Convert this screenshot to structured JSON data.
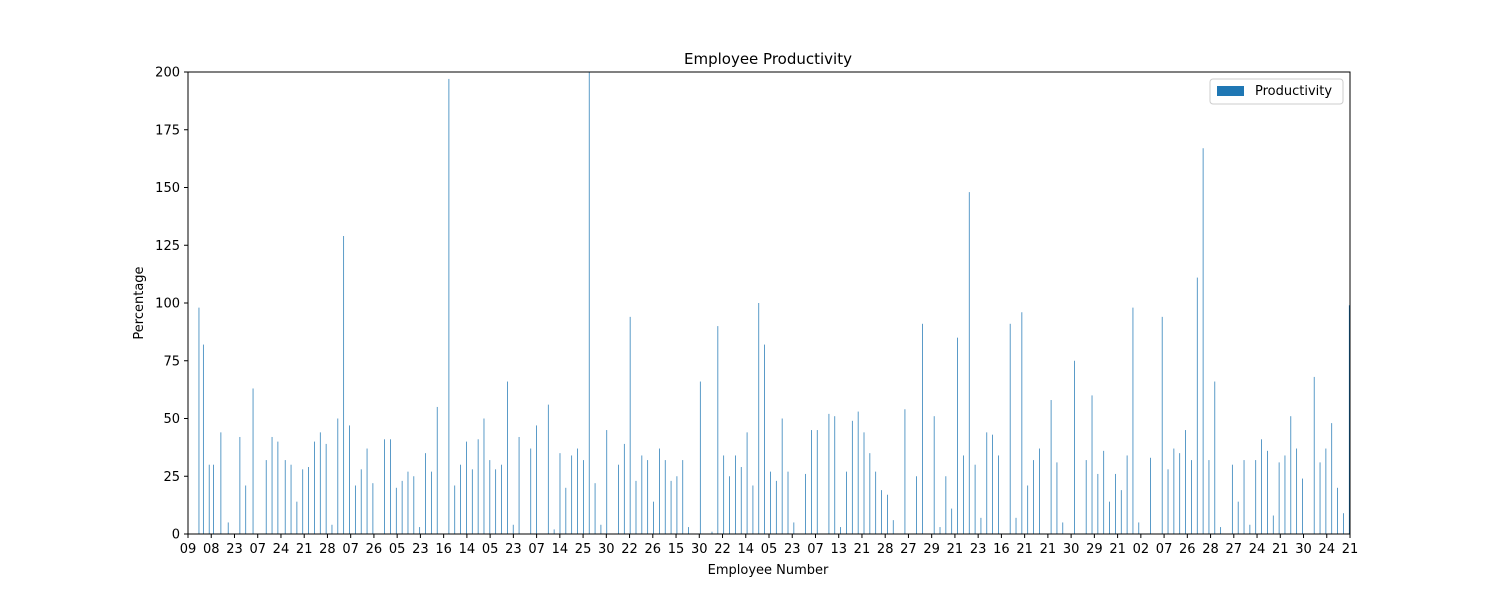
{
  "chart_data": {
    "type": "bar",
    "title": "Employee Productivity",
    "xlabel": "Employee Number",
    "ylabel": "Percentage",
    "ylim": [
      0,
      200
    ],
    "yticks": [
      0,
      25,
      50,
      75,
      100,
      125,
      150,
      175,
      200
    ],
    "xticklabels": [
      "09",
      "08",
      "23",
      "07",
      "24",
      "21",
      "28",
      "07",
      "26",
      "05",
      "23",
      "16",
      "14",
      "05",
      "23",
      "07",
      "14",
      "25",
      "30",
      "22",
      "26",
      "15",
      "30",
      "22",
      "14",
      "05",
      "23",
      "07",
      "13",
      "21",
      "28",
      "27",
      "29",
      "21",
      "23",
      "16",
      "21",
      "21",
      "30",
      "29",
      "21",
      "02",
      "07",
      "26",
      "28",
      "27",
      "24",
      "21",
      "30",
      "24",
      "21"
    ],
    "legend": {
      "position": "upper right",
      "entries": [
        "Productivity"
      ]
    },
    "grid": false,
    "colors": {
      "bar": "#1f77b4"
    },
    "series": [
      {
        "name": "Productivity",
        "values": [
          0,
          0,
          0,
          0,
          0,
          0,
          0,
          98,
          0,
          0,
          82,
          0,
          0,
          0,
          30,
          0,
          0,
          30,
          0,
          0,
          0,
          0,
          44,
          0,
          0,
          0,
          0,
          5,
          0,
          0,
          0,
          0,
          0,
          0,
          0,
          42,
          0,
          0,
          0,
          21,
          0,
          0,
          0,
          0,
          63,
          0,
          0,
          0,
          0,
          0,
          0,
          0,
          0,
          32,
          0,
          0,
          0,
          42,
          0,
          0,
          0,
          40,
          0,
          0,
          0,
          0,
          32,
          0,
          0,
          0,
          30,
          0,
          0,
          0,
          14,
          0,
          0,
          0,
          28,
          0,
          0,
          0,
          29,
          0,
          0,
          0,
          40,
          0,
          0,
          0,
          44,
          0,
          0,
          0,
          39,
          0,
          0,
          0,
          4,
          0,
          0,
          0,
          50,
          0,
          0,
          0,
          129,
          0,
          0,
          0,
          47,
          0,
          0,
          0,
          21,
          0,
          0,
          0,
          28,
          0,
          0,
          0,
          37,
          0,
          0,
          0,
          22,
          0,
          0,
          0,
          0,
          0,
          0,
          0,
          41,
          0,
          0,
          0,
          41,
          0,
          0,
          0,
          20,
          0,
          0,
          0,
          23,
          0,
          0,
          0,
          27,
          0,
          0,
          0,
          25,
          0,
          0,
          0,
          3,
          0,
          0,
          0,
          35,
          0,
          0,
          0,
          27,
          0,
          0,
          0,
          55,
          0,
          0,
          0,
          0,
          0,
          0,
          0,
          197,
          0,
          0,
          0,
          21,
          0,
          0,
          0,
          30,
          0,
          0,
          0,
          40,
          0,
          0,
          0,
          28,
          0,
          0,
          0,
          41,
          0,
          0,
          0,
          50,
          0,
          0,
          0,
          32,
          0,
          0,
          0,
          28,
          0,
          0,
          0,
          30,
          0,
          0,
          0,
          66,
          0,
          0,
          0,
          4,
          0,
          0,
          0,
          42,
          0,
          0,
          0,
          0,
          0,
          0,
          0,
          37,
          0,
          0,
          0,
          47,
          0,
          0,
          0,
          0,
          0,
          0,
          0,
          56,
          0,
          0,
          0,
          2,
          0,
          0,
          0,
          35,
          0,
          0,
          0,
          20,
          0,
          0,
          0,
          34,
          0,
          0,
          0,
          37,
          0,
          0,
          0,
          32,
          0,
          0,
          0,
          200,
          0,
          0,
          0,
          22,
          0,
          0,
          0,
          4,
          0,
          0,
          0,
          45,
          0,
          0,
          0,
          0,
          0,
          0,
          0,
          30,
          0,
          0,
          0,
          39,
          0,
          0,
          0,
          94,
          0,
          0,
          0,
          23,
          0,
          0,
          0,
          34,
          0,
          0,
          0,
          32,
          0,
          0,
          0,
          14,
          0,
          0,
          0,
          37,
          0,
          0,
          0,
          32,
          0,
          0,
          0,
          23,
          0,
          0,
          0,
          25,
          0,
          0,
          0,
          32,
          0,
          0,
          0,
          3,
          0,
          0,
          0,
          0,
          0,
          0,
          0,
          66,
          0,
          0,
          0,
          0,
          0,
          0,
          0,
          1,
          0,
          0,
          0,
          90,
          0,
          0,
          0,
          34,
          0,
          0,
          0,
          25,
          0,
          0,
          0,
          34,
          0,
          0,
          0,
          29,
          0,
          0,
          0,
          44,
          0,
          0,
          0,
          21,
          0,
          0,
          0,
          100,
          0,
          0,
          0,
          82,
          0,
          0,
          0,
          27,
          0,
          0,
          0,
          23,
          0,
          0,
          0,
          50,
          0,
          0,
          0,
          27,
          0,
          0,
          0,
          5,
          0,
          0,
          0,
          0,
          0,
          0,
          0,
          26,
          0,
          0,
          0,
          45,
          0,
          0,
          0,
          45,
          0,
          0,
          0,
          0,
          0,
          0,
          0,
          52,
          0,
          0,
          0,
          51,
          0,
          0,
          0,
          3,
          0,
          0,
          0,
          27,
          0,
          0,
          0,
          49,
          0,
          0,
          0,
          53,
          0,
          0,
          0,
          44,
          0,
          0,
          0,
          35,
          0,
          0,
          0,
          27,
          0,
          0,
          0,
          19,
          0,
          0,
          0,
          17,
          0,
          0,
          0,
          6,
          0,
          0,
          0,
          0,
          0,
          0,
          0,
          54,
          0,
          0,
          0,
          0,
          0,
          0,
          0,
          25,
          0,
          0,
          0,
          91,
          0,
          0,
          0,
          0,
          0,
          0,
          0,
          51,
          0,
          0,
          0,
          3,
          0,
          0,
          0,
          25,
          0,
          0,
          0,
          11,
          0,
          0,
          0,
          85,
          0,
          0,
          0,
          34,
          0,
          0,
          0,
          148,
          0,
          0,
          0,
          30,
          0,
          0,
          0,
          7,
          0,
          0,
          0,
          44,
          0,
          0,
          0,
          43,
          0,
          0,
          0,
          34,
          0,
          0,
          0,
          0,
          0,
          0,
          0,
          91,
          0,
          0,
          0,
          7,
          0,
          0,
          0,
          96,
          0,
          0,
          0,
          21,
          0,
          0,
          0,
          32,
          0,
          0,
          0,
          37,
          0,
          0,
          0,
          0,
          0,
          0,
          0,
          58,
          0,
          0,
          0,
          31,
          0,
          0,
          0,
          5,
          0,
          0,
          0,
          0,
          0,
          0,
          0,
          75,
          0,
          0,
          0,
          0,
          0,
          0,
          0,
          32,
          0,
          0,
          0,
          60,
          0,
          0,
          0,
          26,
          0,
          0,
          0,
          36,
          0,
          0,
          0,
          14,
          0,
          0,
          0,
          26,
          0,
          0,
          0,
          19,
          0,
          0,
          0,
          34,
          0,
          0,
          0,
          98,
          0,
          0,
          0,
          5,
          0,
          0,
          0,
          0,
          0,
          0,
          0,
          33,
          0,
          0,
          0,
          0,
          0,
          0,
          0,
          94,
          0,
          0,
          0,
          28,
          0,
          0,
          0,
          37,
          0,
          0,
          0,
          35,
          0,
          0,
          0,
          45,
          0,
          0,
          0,
          32,
          0,
          0,
          0,
          111,
          0,
          0,
          0,
          167,
          0,
          0,
          0,
          32,
          0,
          0,
          0,
          66,
          0,
          0,
          0,
          3,
          0,
          0,
          0,
          0,
          0,
          0,
          0,
          30,
          0,
          0,
          0,
          14,
          0,
          0,
          0,
          32,
          0,
          0,
          0,
          4,
          0,
          0,
          0,
          32,
          0,
          0,
          0,
          41,
          0,
          0,
          0,
          36,
          0,
          0,
          0,
          8,
          0,
          0,
          0,
          31,
          0,
          0,
          0,
          34,
          0,
          0,
          0,
          51,
          0,
          0,
          0,
          37,
          0,
          0,
          0,
          24,
          0,
          0,
          0,
          0,
          0,
          0,
          0,
          68,
          0,
          0,
          0,
          31,
          0,
          0,
          0,
          37,
          0,
          0,
          0,
          48,
          0,
          0,
          0,
          20,
          0,
          0,
          0,
          9,
          0,
          0,
          0,
          99
        ]
      }
    ]
  }
}
